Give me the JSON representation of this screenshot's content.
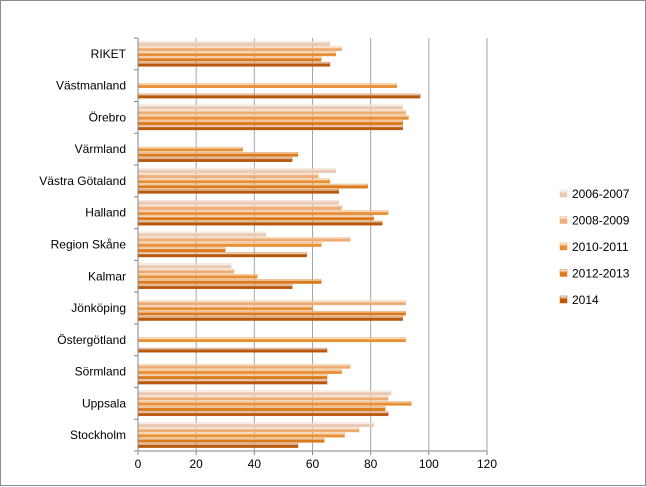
{
  "chart_data": {
    "type": "bar",
    "orientation": "horizontal",
    "categories": [
      "RIKET",
      "Västmanland",
      "Örebro",
      "Värmland",
      "Västra Götaland",
      "Halland",
      "Region Skåne",
      "Kalmar",
      "Jönköping",
      "Östergötland",
      "Sörmland",
      "Uppsala",
      "Stockholm"
    ],
    "series": [
      {
        "name": "2006-2007",
        "color": "#e8c9b4",
        "values": [
          66,
          null,
          91,
          null,
          68,
          69,
          44,
          32,
          null,
          null,
          null,
          87,
          81
        ]
      },
      {
        "name": "2008-2009",
        "color": "#ecac74",
        "values": [
          70,
          null,
          92,
          null,
          62,
          70,
          73,
          33,
          92,
          null,
          73,
          86,
          76
        ]
      },
      {
        "name": "2010-2011",
        "color": "#e89036",
        "values": [
          68,
          89,
          93,
          36,
          66,
          86,
          63,
          41,
          60,
          92,
          70,
          94,
          71
        ]
      },
      {
        "name": "2012-2013",
        "color": "#db7a1c",
        "values": [
          63,
          null,
          91,
          55,
          79,
          81,
          30,
          63,
          92,
          null,
          65,
          85,
          64
        ]
      },
      {
        "name": "2014",
        "color": "#b8580d",
        "values": [
          66,
          97,
          91,
          53,
          69,
          84,
          58,
          53,
          91,
          65,
          65,
          86,
          55
        ]
      }
    ],
    "xlim": [
      0,
      120
    ],
    "xticks": [
      "0",
      "20",
      "40",
      "60",
      "80",
      "100",
      "120"
    ],
    "grid": "vertical",
    "legend_position": "right"
  }
}
